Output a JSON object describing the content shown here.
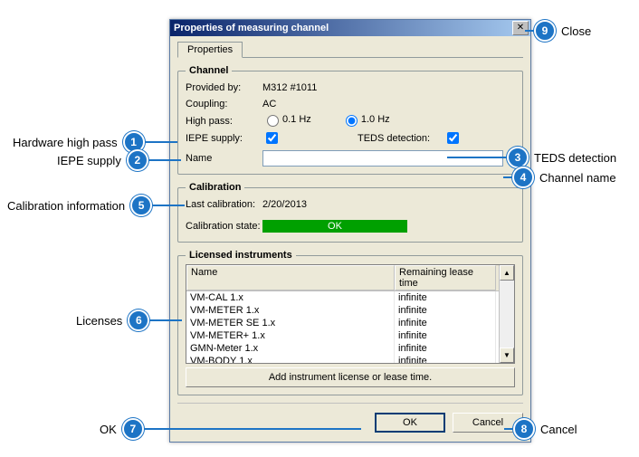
{
  "dialog": {
    "title": "Properties of measuring channel",
    "tab": "Properties"
  },
  "channel": {
    "legend": "Channel",
    "provided_by_label": "Provided by:",
    "provided_by_value": "M312    #1011",
    "coupling_label": "Coupling:",
    "coupling_value": "AC",
    "high_pass_label": "High pass:",
    "high_pass_option1": "0.1 Hz",
    "high_pass_option2": "1.0 Hz",
    "iepe_label": "IEPE supply:",
    "teds_label": "TEDS detection:",
    "name_label": "Name",
    "name_value": ""
  },
  "calibration": {
    "legend": "Calibration",
    "last_label": "Last calibration:",
    "last_value": "2/20/2013",
    "state_label": "Calibration state:",
    "state_value": "OK",
    "state_bg": "#00a000"
  },
  "licensed": {
    "legend": "Licensed instruments",
    "col_name": "Name",
    "col_remaining": "Remaining lease time",
    "rows": [
      {
        "name": "VM-CAL 1.x",
        "rt": "infinite"
      },
      {
        "name": "VM-METER 1.x",
        "rt": "infinite"
      },
      {
        "name": "VM-METER SE 1.x",
        "rt": "infinite"
      },
      {
        "name": "VM-METER+ 1.x",
        "rt": "infinite"
      },
      {
        "name": "GMN-Meter 1.x",
        "rt": "infinite"
      },
      {
        "name": "VM-BODY 1.x",
        "rt": "infinite"
      }
    ],
    "add_button": "Add instrument license or lease time."
  },
  "buttons": {
    "ok": "OK",
    "cancel": "Cancel"
  },
  "callouts": {
    "1": "Hardware high pass",
    "2": "IEPE supply",
    "3": "TEDS detection",
    "4": "Channel name",
    "5": "Calibration information",
    "6": "Licenses",
    "7": "OK",
    "8": "Cancel",
    "9": "Close"
  }
}
